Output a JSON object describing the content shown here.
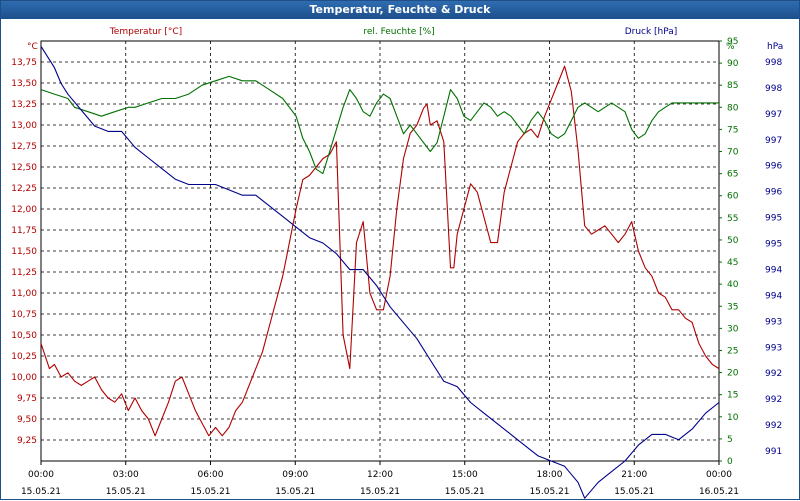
{
  "window": {
    "title": "Temperatur, Feuchte & Druck"
  },
  "chart_data": {
    "type": "line",
    "title": "Temperatur, Feuchte & Druck",
    "grid": true,
    "x_ticks": [
      {
        "time": "00:00",
        "date": "15.05.21"
      },
      {
        "time": "03:00",
        "date": "15.05.21"
      },
      {
        "time": "06:00",
        "date": "15.05.21"
      },
      {
        "time": "09:00",
        "date": "15.05.21"
      },
      {
        "time": "12:00",
        "date": "15.05.21"
      },
      {
        "time": "15:00",
        "date": "15.05.21"
      },
      {
        "time": "18:00",
        "date": "15.05.21"
      },
      {
        "time": "21:00",
        "date": "15.05.21"
      },
      {
        "time": "00:00",
        "date": "16.05.21"
      }
    ],
    "axes": {
      "temperature": {
        "label": "Temperatur [°C]",
        "unit": "°C",
        "color": "#b00000",
        "min": 9.0,
        "max": 14.0,
        "ticks": [
          "9,25",
          "9,50",
          "9,75",
          "10,00",
          "10,25",
          "10,50",
          "10,75",
          "11,00",
          "11,25",
          "11,50",
          "11,75",
          "12,00",
          "12,25",
          "12,50",
          "12,75",
          "13,00",
          "13,25",
          "13,50",
          "13,75"
        ]
      },
      "humidity": {
        "label": "rel. Feuchte [%]",
        "unit": "%",
        "color": "#007000",
        "min": 0,
        "max": 95,
        "ticks": [
          "0",
          "5",
          "10",
          "15",
          "20",
          "25",
          "30",
          "35",
          "40",
          "45",
          "50",
          "55",
          "60",
          "65",
          "70",
          "75",
          "80",
          "85",
          "90",
          "95"
        ]
      },
      "pressure": {
        "label": "Druck [hPa]",
        "unit": "hPa",
        "color": "#00008b",
        "min": 990.7,
        "max": 998.6,
        "ticks": [
          "991",
          "992",
          "992",
          "992",
          "993",
          "993",
          "994",
          "994",
          "995",
          "995",
          "996",
          "996",
          "997",
          "997",
          "998",
          "998"
        ]
      }
    },
    "series": [
      {
        "name": "Temperatur [°C]",
        "axis": "temperature",
        "color": "#b00000",
        "points": [
          [
            0.0,
            10.4
          ],
          [
            0.25,
            10.1
          ],
          [
            0.4,
            10.15
          ],
          [
            0.6,
            10.0
          ],
          [
            0.8,
            10.05
          ],
          [
            1.0,
            9.95
          ],
          [
            1.2,
            9.9
          ],
          [
            1.4,
            9.95
          ],
          [
            1.6,
            10.0
          ],
          [
            1.8,
            9.85
          ],
          [
            2.0,
            9.75
          ],
          [
            2.2,
            9.7
          ],
          [
            2.4,
            9.8
          ],
          [
            2.6,
            9.6
          ],
          [
            2.8,
            9.75
          ],
          [
            3.0,
            9.6
          ],
          [
            3.2,
            9.5
          ],
          [
            3.4,
            9.3
          ],
          [
            3.6,
            9.5
          ],
          [
            3.8,
            9.7
          ],
          [
            4.0,
            9.95
          ],
          [
            4.2,
            10.0
          ],
          [
            4.4,
            9.8
          ],
          [
            4.6,
            9.6
          ],
          [
            4.8,
            9.45
          ],
          [
            5.0,
            9.3
          ],
          [
            5.2,
            9.4
          ],
          [
            5.4,
            9.3
          ],
          [
            5.6,
            9.4
          ],
          [
            5.8,
            9.6
          ],
          [
            6.0,
            9.7
          ],
          [
            6.2,
            9.9
          ],
          [
            6.4,
            10.1
          ],
          [
            6.6,
            10.3
          ],
          [
            6.8,
            10.6
          ],
          [
            7.0,
            10.9
          ],
          [
            7.2,
            11.2
          ],
          [
            7.4,
            11.6
          ],
          [
            7.6,
            12.0
          ],
          [
            7.8,
            12.35
          ],
          [
            8.0,
            12.4
          ],
          [
            8.2,
            12.5
          ],
          [
            8.4,
            12.6
          ],
          [
            8.6,
            12.65
          ],
          [
            8.8,
            12.8
          ],
          [
            9.0,
            10.5
          ],
          [
            9.2,
            10.1
          ],
          [
            9.4,
            11.6
          ],
          [
            9.6,
            11.85
          ],
          [
            9.8,
            11.0
          ],
          [
            10.0,
            10.8
          ],
          [
            10.2,
            10.8
          ],
          [
            10.4,
            11.2
          ],
          [
            10.6,
            12.0
          ],
          [
            10.8,
            12.6
          ],
          [
            11.0,
            12.9
          ],
          [
            11.2,
            13.0
          ],
          [
            11.4,
            13.2
          ],
          [
            11.5,
            13.25
          ],
          [
            11.6,
            13.0
          ],
          [
            11.8,
            13.05
          ],
          [
            12.0,
            12.8
          ],
          [
            12.2,
            11.3
          ],
          [
            12.3,
            11.3
          ],
          [
            12.4,
            11.7
          ],
          [
            12.6,
            12.0
          ],
          [
            12.8,
            12.3
          ],
          [
            13.0,
            12.2
          ],
          [
            13.2,
            11.9
          ],
          [
            13.4,
            11.6
          ],
          [
            13.6,
            11.6
          ],
          [
            13.8,
            12.2
          ],
          [
            14.0,
            12.5
          ],
          [
            14.2,
            12.8
          ],
          [
            14.4,
            12.9
          ],
          [
            14.6,
            12.95
          ],
          [
            14.8,
            12.85
          ],
          [
            15.0,
            13.1
          ],
          [
            15.2,
            13.3
          ],
          [
            15.4,
            13.5
          ],
          [
            15.6,
            13.7
          ],
          [
            15.8,
            13.4
          ],
          [
            16.0,
            12.7
          ],
          [
            16.2,
            11.8
          ],
          [
            16.4,
            11.7
          ],
          [
            16.6,
            11.75
          ],
          [
            16.8,
            11.8
          ],
          [
            17.0,
            11.7
          ],
          [
            17.2,
            11.6
          ],
          [
            17.4,
            11.7
          ],
          [
            17.6,
            11.85
          ],
          [
            17.8,
            11.5
          ],
          [
            18.0,
            11.3
          ],
          [
            18.2,
            11.2
          ],
          [
            18.4,
            11.0
          ],
          [
            18.6,
            10.95
          ],
          [
            18.8,
            10.8
          ],
          [
            19.0,
            10.8
          ],
          [
            19.2,
            10.7
          ],
          [
            19.4,
            10.65
          ],
          [
            19.6,
            10.4
          ],
          [
            19.8,
            10.25
          ],
          [
            20.0,
            10.15
          ],
          [
            20.2,
            10.1
          ]
        ]
      },
      {
        "name": "rel. Feuchte [%]",
        "axis": "humidity",
        "color": "#007000",
        "points": [
          [
            0.0,
            84
          ],
          [
            0.4,
            83
          ],
          [
            0.8,
            82
          ],
          [
            1.0,
            80
          ],
          [
            1.4,
            79
          ],
          [
            1.8,
            78
          ],
          [
            2.2,
            79
          ],
          [
            2.6,
            80
          ],
          [
            2.8,
            80
          ],
          [
            3.2,
            81
          ],
          [
            3.6,
            82
          ],
          [
            4.0,
            82
          ],
          [
            4.4,
            83
          ],
          [
            4.8,
            85
          ],
          [
            5.2,
            86
          ],
          [
            5.6,
            87
          ],
          [
            6.0,
            86
          ],
          [
            6.4,
            86
          ],
          [
            6.8,
            84
          ],
          [
            7.2,
            82
          ],
          [
            7.6,
            78
          ],
          [
            7.8,
            73
          ],
          [
            8.0,
            70
          ],
          [
            8.2,
            66
          ],
          [
            8.4,
            65
          ],
          [
            8.6,
            70
          ],
          [
            8.8,
            75
          ],
          [
            9.0,
            80
          ],
          [
            9.2,
            84
          ],
          [
            9.4,
            82
          ],
          [
            9.6,
            79
          ],
          [
            9.8,
            78
          ],
          [
            10.0,
            81
          ],
          [
            10.2,
            83
          ],
          [
            10.4,
            82
          ],
          [
            10.6,
            78
          ],
          [
            10.8,
            74
          ],
          [
            11.0,
            76
          ],
          [
            11.2,
            74
          ],
          [
            11.4,
            72
          ],
          [
            11.6,
            70
          ],
          [
            11.8,
            72
          ],
          [
            12.0,
            78
          ],
          [
            12.2,
            84
          ],
          [
            12.4,
            82
          ],
          [
            12.6,
            78
          ],
          [
            12.8,
            77
          ],
          [
            13.0,
            79
          ],
          [
            13.2,
            81
          ],
          [
            13.4,
            80
          ],
          [
            13.6,
            78
          ],
          [
            13.8,
            79
          ],
          [
            14.0,
            78
          ],
          [
            14.2,
            76
          ],
          [
            14.4,
            74
          ],
          [
            14.6,
            77
          ],
          [
            14.8,
            79
          ],
          [
            15.0,
            77
          ],
          [
            15.2,
            74
          ],
          [
            15.4,
            73
          ],
          [
            15.6,
            74
          ],
          [
            15.8,
            77
          ],
          [
            16.0,
            80
          ],
          [
            16.2,
            81
          ],
          [
            16.4,
            80
          ],
          [
            16.6,
            79
          ],
          [
            16.8,
            80
          ],
          [
            17.0,
            81
          ],
          [
            17.2,
            80
          ],
          [
            17.4,
            79
          ],
          [
            17.6,
            75
          ],
          [
            17.8,
            73
          ],
          [
            18.0,
            74
          ],
          [
            18.2,
            77
          ],
          [
            18.4,
            79
          ],
          [
            18.6,
            80
          ],
          [
            18.8,
            81
          ],
          [
            19.2,
            81
          ],
          [
            19.6,
            81
          ],
          [
            20.0,
            81
          ],
          [
            20.2,
            81
          ]
        ]
      },
      {
        "name": "Druck [hPa]",
        "axis": "pressure",
        "color": "#00008b",
        "points": [
          [
            0.0,
            998.5
          ],
          [
            0.2,
            998.3
          ],
          [
            0.4,
            998.1
          ],
          [
            0.6,
            997.8
          ],
          [
            0.8,
            997.6
          ],
          [
            1.2,
            997.3
          ],
          [
            1.6,
            997.0
          ],
          [
            2.0,
            996.9
          ],
          [
            2.4,
            996.9
          ],
          [
            2.8,
            996.6
          ],
          [
            3.2,
            996.4
          ],
          [
            3.6,
            996.2
          ],
          [
            4.0,
            996.0
          ],
          [
            4.4,
            995.9
          ],
          [
            4.8,
            995.9
          ],
          [
            5.2,
            995.9
          ],
          [
            5.6,
            995.8
          ],
          [
            6.0,
            995.7
          ],
          [
            6.4,
            995.7
          ],
          [
            6.8,
            995.5
          ],
          [
            7.2,
            995.3
          ],
          [
            7.6,
            995.1
          ],
          [
            8.0,
            994.9
          ],
          [
            8.4,
            994.8
          ],
          [
            8.8,
            994.6
          ],
          [
            9.2,
            994.3
          ],
          [
            9.6,
            994.3
          ],
          [
            10.0,
            994.0
          ],
          [
            10.4,
            993.6
          ],
          [
            10.8,
            993.3
          ],
          [
            11.2,
            993.0
          ],
          [
            11.6,
            992.6
          ],
          [
            12.0,
            992.2
          ],
          [
            12.4,
            992.1
          ],
          [
            12.8,
            991.8
          ],
          [
            13.2,
            991.6
          ],
          [
            13.6,
            991.4
          ],
          [
            14.0,
            991.2
          ],
          [
            14.4,
            991.0
          ],
          [
            14.8,
            990.8
          ],
          [
            15.2,
            990.7
          ],
          [
            15.6,
            990.6
          ],
          [
            16.0,
            990.3
          ],
          [
            16.2,
            990.0
          ],
          [
            16.6,
            990.3
          ],
          [
            17.0,
            990.5
          ],
          [
            17.4,
            990.7
          ],
          [
            17.8,
            991.0
          ],
          [
            18.2,
            991.2
          ],
          [
            18.6,
            991.2
          ],
          [
            19.0,
            991.1
          ],
          [
            19.4,
            991.3
          ],
          [
            19.8,
            991.6
          ],
          [
            20.2,
            991.8
          ]
        ]
      }
    ]
  }
}
